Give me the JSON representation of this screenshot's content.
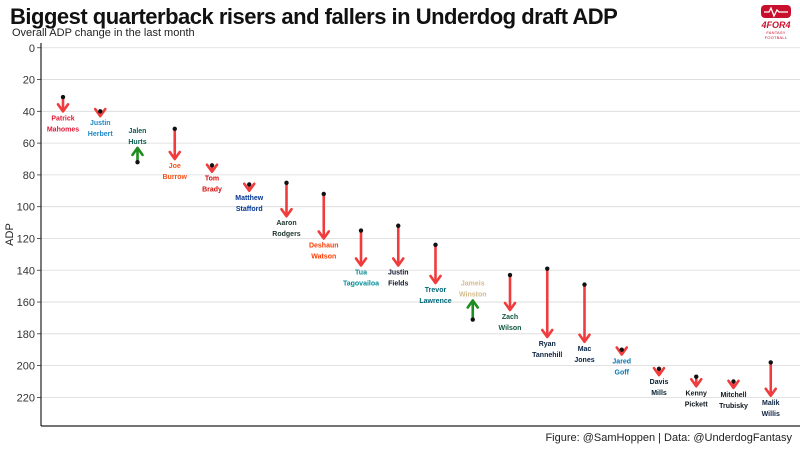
{
  "header": {
    "title": "Biggest quarterback risers and fallers in Underdog draft ADP",
    "subtitle": "Overall ADP change in the last month"
  },
  "logo": {
    "text": "4FOR4",
    "sub": "FANTASY FOOTBALL",
    "color": "#c8102e"
  },
  "caption": "Figure: @SamHoppen | Data: @UnderdogFantasy",
  "colors": {
    "faller_arrow": "#f03c3c",
    "riser_arrow": "#1e8c1e",
    "point": "#111111",
    "gridline": "#d9d9d9"
  },
  "chart_data": {
    "type": "arrow",
    "ylabel": "ADP",
    "y_reversed": true,
    "ylim": [
      -3,
      238
    ],
    "yticks": [
      0,
      20,
      40,
      60,
      80,
      100,
      120,
      140,
      160,
      180,
      200,
      220
    ],
    "grid": true,
    "players": [
      {
        "first": "Patrick",
        "last": "Mahomes",
        "from": 31,
        "to": 40,
        "label_color": "#e31837"
      },
      {
        "first": "Justin",
        "last": "Herbert",
        "from": 40,
        "to": 43,
        "label_color": "#1e88c7"
      },
      {
        "first": "Jalen",
        "last": "Hurts",
        "from": 72,
        "to": 63,
        "label_color": "#0b5c4f"
      },
      {
        "first": "Joe",
        "last": "Burrow",
        "from": 51,
        "to": 70,
        "label_color": "#fb4f14"
      },
      {
        "first": "Tom",
        "last": "Brady",
        "from": 74,
        "to": 78,
        "label_color": "#d50a0a"
      },
      {
        "first": "Matthew",
        "last": "Stafford",
        "from": 86,
        "to": 90,
        "label_color": "#003594"
      },
      {
        "first": "Aaron",
        "last": "Rodgers",
        "from": 85,
        "to": 106,
        "label_color": "#203731"
      },
      {
        "first": "Deshaun",
        "last": "Watson",
        "from": 92,
        "to": 120,
        "label_color": "#ff3c00"
      },
      {
        "first": "Tua",
        "last": "Tagovailoa",
        "from": 115,
        "to": 137,
        "label_color": "#008e97"
      },
      {
        "first": "Justin",
        "last": "Fields",
        "from": 112,
        "to": 137,
        "label_color": "#0b162a"
      },
      {
        "first": "Trevor",
        "last": "Lawrence",
        "from": 124,
        "to": 148,
        "label_color": "#006778"
      },
      {
        "first": "Jameis",
        "last": "Winston",
        "from": 171,
        "to": 159,
        "label_color": "#d3bc8d"
      },
      {
        "first": "Zach",
        "last": "Wilson",
        "from": 143,
        "to": 165,
        "label_color": "#125740"
      },
      {
        "first": "Ryan",
        "last": "Tannehill",
        "from": 139,
        "to": 182,
        "label_color": "#0c2340"
      },
      {
        "first": "Mac",
        "last": "Jones",
        "from": 149,
        "to": 185,
        "label_color": "#002244"
      },
      {
        "first": "Jared",
        "last": "Goff",
        "from": 190,
        "to": 193,
        "label_color": "#0076b6"
      },
      {
        "first": "Davis",
        "last": "Mills",
        "from": 202,
        "to": 206,
        "label_color": "#03202f"
      },
      {
        "first": "Kenny",
        "last": "Pickett",
        "from": 207,
        "to": 213,
        "label_color": "#101820"
      },
      {
        "first": "Mitchell",
        "last": "Trubisky",
        "from": 210,
        "to": 214,
        "label_color": "#101820"
      },
      {
        "first": "Malik",
        "last": "Willis",
        "from": 198,
        "to": 219,
        "label_color": "#0c2340"
      }
    ]
  }
}
